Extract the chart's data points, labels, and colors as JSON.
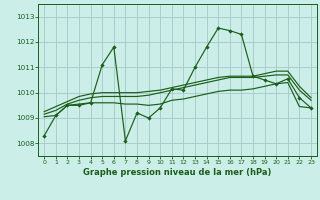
{
  "title": "Graphe pression niveau de la mer (hPa)",
  "background_color": "#cceee8",
  "grid_color": "#aacccc",
  "line_color": "#1a5e1a",
  "xlim": [
    -0.5,
    23.5
  ],
  "ylim": [
    1007.5,
    1013.5
  ],
  "yticks": [
    1008,
    1009,
    1010,
    1011,
    1012,
    1013
  ],
  "xticks": [
    0,
    1,
    2,
    3,
    4,
    5,
    6,
    7,
    8,
    9,
    10,
    11,
    12,
    13,
    14,
    15,
    16,
    17,
    18,
    19,
    20,
    21,
    22,
    23
  ],
  "series_main": [
    1008.3,
    1009.1,
    1009.5,
    1009.5,
    1009.6,
    1011.1,
    1011.8,
    1008.1,
    1009.2,
    1009.0,
    1009.4,
    1010.15,
    1010.1,
    1011.0,
    1011.8,
    1012.55,
    1012.45,
    1012.3,
    1010.65,
    1010.5,
    1010.35,
    1010.55,
    1009.8,
    1009.4
  ],
  "series2": [
    1009.05,
    1009.1,
    1009.5,
    1009.55,
    1009.6,
    1009.6,
    1009.6,
    1009.55,
    1009.55,
    1009.5,
    1009.55,
    1009.7,
    1009.75,
    1009.85,
    1009.95,
    1010.05,
    1010.1,
    1010.1,
    1010.15,
    1010.25,
    1010.35,
    1010.4,
    1009.45,
    1009.4
  ],
  "series3": [
    1009.15,
    1009.3,
    1009.55,
    1009.7,
    1009.8,
    1009.85,
    1009.85,
    1009.85,
    1009.85,
    1009.9,
    1010.0,
    1010.1,
    1010.2,
    1010.3,
    1010.4,
    1010.5,
    1010.6,
    1010.6,
    1010.6,
    1010.65,
    1010.7,
    1010.7,
    1010.1,
    1009.7
  ],
  "series4": [
    1009.25,
    1009.45,
    1009.65,
    1009.85,
    1009.95,
    1010.0,
    1010.0,
    1010.0,
    1010.0,
    1010.05,
    1010.1,
    1010.2,
    1010.3,
    1010.4,
    1010.5,
    1010.6,
    1010.65,
    1010.65,
    1010.65,
    1010.75,
    1010.85,
    1010.85,
    1010.25,
    1009.8
  ]
}
